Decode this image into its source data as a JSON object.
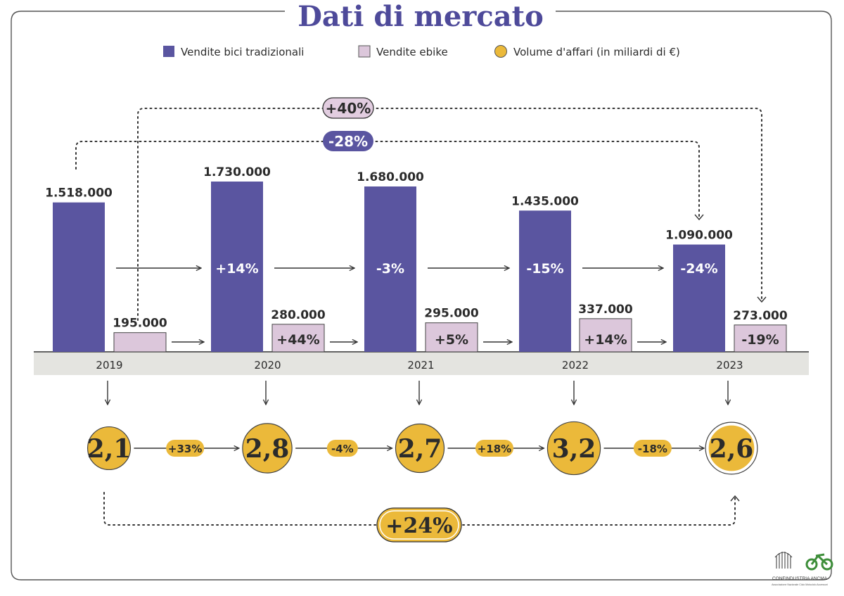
{
  "title": "Dati di mercato",
  "legend": {
    "traditional": "Vendite bici tradizionali",
    "ebike": "Vendite ebike",
    "volume": "Volume d'affari (in miliardi di €)"
  },
  "colors": {
    "traditional": "#5a55a0",
    "ebike": "#dcc7db",
    "volume": "#ebb93a",
    "axis_band": "#e4e4e0",
    "pill_purple": "#5a55a0",
    "pill_pink": "#e2cde0",
    "text": "#2b2b2b",
    "title": "#4e4a9a"
  },
  "chart_data": {
    "type": "bar",
    "categories": [
      "2019",
      "2020",
      "2021",
      "2022",
      "2023"
    ],
    "series": [
      {
        "name": "Vendite bici tradizionali",
        "values": [
          1518000,
          1730000,
          1680000,
          1435000,
          1090000
        ],
        "labels": [
          "1.518.000",
          "1.730.000",
          "1.680.000",
          "1.435.000",
          "1.090.000"
        ],
        "changes": [
          "",
          "+14%",
          "-3%",
          "-15%",
          "-24%"
        ]
      },
      {
        "name": "Vendite ebike",
        "values": [
          195000,
          280000,
          295000,
          337000,
          273000
        ],
        "labels": [
          "195.000",
          "280.000",
          "295.000",
          "337.000",
          "273.000"
        ],
        "changes": [
          "",
          "+44%",
          "+5%",
          "+14%",
          "-19%"
        ]
      }
    ],
    "volume": {
      "name": "Volume d'affari (in miliardi di €)",
      "values": [
        2.1,
        2.8,
        2.7,
        3.2,
        2.6
      ],
      "labels": [
        "2,1",
        "2,8",
        "2,7",
        "3,2",
        "2,6"
      ],
      "changes": [
        "+33%",
        "-4%",
        "+18%",
        "-18%"
      ],
      "overall_change": "+24%"
    },
    "overall_changes": {
      "traditional": "-28%",
      "ebike": "+40%"
    },
    "ylim": [
      0,
      1730000
    ]
  },
  "logo": {
    "line1": "CONFINDUSTRIA ANCMA",
    "line2": "Associazione Nazionale Ciclo Motociclo Accessori"
  }
}
